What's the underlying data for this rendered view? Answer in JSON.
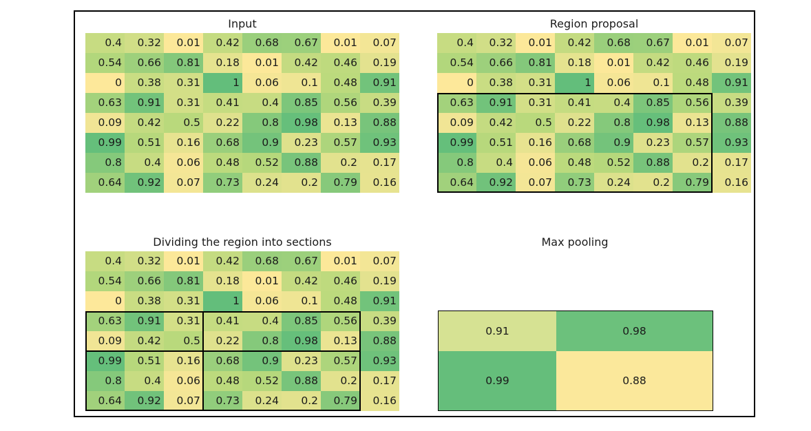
{
  "titles": {
    "input": "Input",
    "region_proposal": "Region proposal",
    "dividing": "Dividing the region into sections",
    "max_pooling": "Max pooling"
  },
  "matrix": [
    [
      "0.4",
      "0.32",
      "0.01",
      "0.42",
      "0.68",
      "0.67",
      "0.01",
      "0.07"
    ],
    [
      "0.54",
      "0.66",
      "0.81",
      "0.18",
      "0.01",
      "0.42",
      "0.46",
      "0.19"
    ],
    [
      "0",
      "0.38",
      "0.31",
      "1",
      "0.06",
      "0.1",
      "0.48",
      "0.91"
    ],
    [
      "0.63",
      "0.91",
      "0.31",
      "0.41",
      "0.4",
      "0.85",
      "0.56",
      "0.39"
    ],
    [
      "0.09",
      "0.42",
      "0.5",
      "0.22",
      "0.8",
      "0.98",
      "0.13",
      "0.88"
    ],
    [
      "0.99",
      "0.51",
      "0.16",
      "0.68",
      "0.9",
      "0.23",
      "0.57",
      "0.93"
    ],
    [
      "0.8",
      "0.4",
      "0.06",
      "0.48",
      "0.52",
      "0.88",
      "0.2",
      "0.17"
    ],
    [
      "0.64",
      "0.92",
      "0.07",
      "0.73",
      "0.24",
      "0.2",
      "0.79",
      "0.16"
    ]
  ],
  "pooled": [
    [
      "0.91",
      "0.98"
    ],
    [
      "0.99",
      "0.88"
    ]
  ],
  "colors": {
    "low": "#fde89a",
    "mid": "#b9d97c",
    "high": "#63be7b",
    "border": "#000000"
  }
}
